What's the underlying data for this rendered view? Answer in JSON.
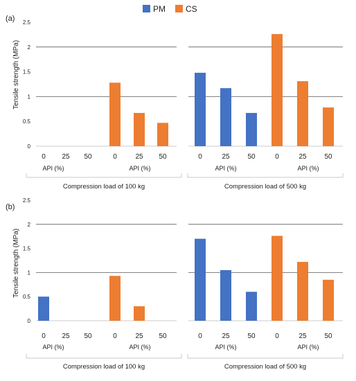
{
  "legend": [
    {
      "name": "PM",
      "color": "#4472C4"
    },
    {
      "name": "CS",
      "color": "#ED7D31"
    }
  ],
  "panels": [
    {
      "label": "(a)",
      "ylabel": "Tensile strength (MPa)",
      "yticks": [
        "0",
        "0.5",
        "1",
        "1.5",
        "2",
        "2.5"
      ],
      "groups": [
        {
          "load_label": "Compression load of 100 kg",
          "subgroup_labels": [
            "API (%)",
            "API (%)"
          ],
          "categories": [
            "0",
            "25",
            "50",
            "0",
            "25",
            "50"
          ]
        },
        {
          "load_label": "Compression load of 500 kg",
          "subgroup_labels": [
            "API (%)",
            "API (%)"
          ],
          "categories": [
            "0",
            "25",
            "50",
            "0",
            "25",
            "50"
          ]
        }
      ]
    },
    {
      "label": "(b)",
      "ylabel": "Tensile strength (MPa)",
      "yticks": [
        "0",
        "0.5",
        "1",
        "1.5",
        "2",
        "2.5"
      ],
      "groups": [
        {
          "load_label": "Compression load of 100 kg",
          "subgroup_labels": [
            "API (%)",
            "API (%)"
          ],
          "categories": [
            "0",
            "25",
            "50",
            "0",
            "25",
            "50"
          ]
        },
        {
          "load_label": "Compression load of 500 kg",
          "subgroup_labels": [
            "API (%)",
            "API (%)"
          ],
          "categories": [
            "0",
            "25",
            "50",
            "0",
            "25",
            "50"
          ]
        }
      ]
    }
  ],
  "chart_data": [
    {
      "type": "bar",
      "panel": "(a)",
      "ylabel": "Tensile strength (MPa)",
      "ylim": [
        0,
        2.5
      ],
      "grid_lines_at": [
        1,
        2
      ],
      "categories": [
        "0",
        "25",
        "50",
        "0",
        "25",
        "50",
        "0",
        "25",
        "50",
        "0",
        "25",
        "50"
      ],
      "series": [
        {
          "name": "PM",
          "color": "#4472C4",
          "values": [
            0,
            0,
            0,
            null,
            null,
            null,
            1.48,
            1.17,
            0.67,
            null,
            null,
            null
          ]
        },
        {
          "name": "CS",
          "color": "#ED7D31",
          "values": [
            null,
            null,
            null,
            1.28,
            0.67,
            0.47,
            null,
            null,
            null,
            2.26,
            1.31,
            0.78
          ]
        }
      ],
      "legend_position": "top"
    },
    {
      "type": "bar",
      "panel": "(b)",
      "ylabel": "Tensile strength (MPa)",
      "ylim": [
        0,
        2.5
      ],
      "grid_lines_at": [
        1,
        2
      ],
      "categories": [
        "0",
        "25",
        "50",
        "0",
        "25",
        "50",
        "0",
        "25",
        "50",
        "0",
        "25",
        "50"
      ],
      "series": [
        {
          "name": "PM",
          "color": "#4472C4",
          "values": [
            0.5,
            0,
            0,
            null,
            null,
            null,
            1.7,
            1.05,
            0.6,
            null,
            null,
            null
          ]
        },
        {
          "name": "CS",
          "color": "#ED7D31",
          "values": [
            null,
            null,
            null,
            0.93,
            0.3,
            0,
            null,
            null,
            null,
            1.76,
            1.22,
            0.85
          ]
        }
      ],
      "legend_position": "top"
    }
  ]
}
